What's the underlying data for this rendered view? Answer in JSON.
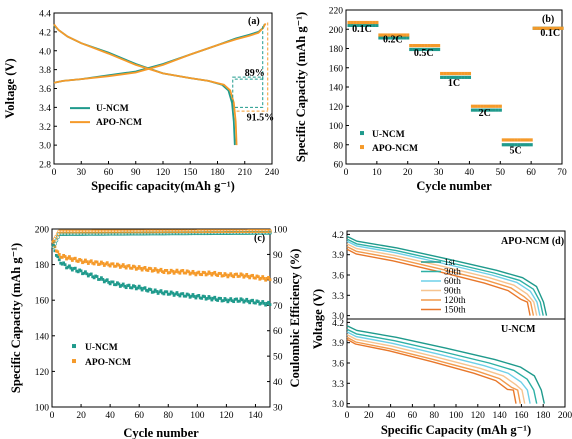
{
  "colors": {
    "u": "#1f9a8c",
    "apo": "#f59a2a",
    "cycle_palette": [
      "#1f9a8c",
      "#2db0a5",
      "#6fd0e8",
      "#f6c490",
      "#f29a4c",
      "#e8772a"
    ]
  },
  "chart_data": [
    {
      "id": "a",
      "type": "line",
      "panel_label": "(a)",
      "xlabel": "Specific capacity(mAh g⁻¹)",
      "ylabel": "Voltage (V)",
      "xlim": [
        0,
        240
      ],
      "ylim": [
        2.8,
        4.4
      ],
      "xticks": [
        "0",
        "30",
        "60",
        "90",
        "120",
        "150",
        "180",
        "210",
        "240"
      ],
      "yticks": [
        "2.8",
        "3.0",
        "3.2",
        "3.4",
        "3.6",
        "3.8",
        "4.0",
        "4.2",
        "4.4"
      ],
      "legend": [
        "U-NCM",
        "APO-NCM"
      ],
      "annotations": [
        "89%",
        "91.5%"
      ],
      "series": [
        {
          "name": "U-NCM",
          "color_key": "u",
          "charge": [
            [
              0,
              3.66
            ],
            [
              10,
              3.68
            ],
            [
              30,
              3.7
            ],
            [
              60,
              3.74
            ],
            [
              90,
              3.78
            ],
            [
              120,
              3.86
            ],
            [
              150,
              3.96
            ],
            [
              180,
              4.06
            ],
            [
              200,
              4.13
            ],
            [
              215,
              4.17
            ],
            [
              225,
              4.2
            ],
            [
              230,
              4.24
            ],
            [
              232,
              4.28
            ]
          ],
          "discharge": [
            [
              0,
              4.27
            ],
            [
              5,
              4.22
            ],
            [
              15,
              4.15
            ],
            [
              30,
              4.08
            ],
            [
              60,
              3.98
            ],
            [
              90,
              3.86
            ],
            [
              120,
              3.76
            ],
            [
              150,
              3.71
            ],
            [
              170,
              3.68
            ],
            [
              185,
              3.64
            ],
            [
              192,
              3.58
            ],
            [
              196,
              3.45
            ],
            [
              198,
              3.25
            ],
            [
              199,
              3.0
            ]
          ]
        },
        {
          "name": "APO-NCM",
          "color_key": "apo",
          "charge": [
            [
              0,
              3.66
            ],
            [
              10,
              3.68
            ],
            [
              30,
              3.7
            ],
            [
              60,
              3.73
            ],
            [
              90,
              3.77
            ],
            [
              120,
              3.85
            ],
            [
              150,
              3.96
            ],
            [
              180,
              4.06
            ],
            [
              200,
              4.12
            ],
            [
              215,
              4.16
            ],
            [
              225,
              4.19
            ],
            [
              230,
              4.24
            ],
            [
              233,
              4.29
            ]
          ],
          "discharge": [
            [
              0,
              4.28
            ],
            [
              5,
              4.22
            ],
            [
              15,
              4.15
            ],
            [
              30,
              4.08
            ],
            [
              60,
              3.97
            ],
            [
              90,
              3.85
            ],
            [
              120,
              3.76
            ],
            [
              150,
              3.71
            ],
            [
              170,
              3.68
            ],
            [
              187,
              3.64
            ],
            [
              194,
              3.58
            ],
            [
              198,
              3.45
            ],
            [
              200,
              3.25
            ],
            [
              201,
              3.0
            ]
          ]
        }
      ]
    },
    {
      "id": "b",
      "type": "scatter",
      "panel_label": "(b)",
      "xlabel": "Cycle number",
      "ylabel": "Specific Capacity (mAh g⁻¹)",
      "xlim": [
        0,
        70
      ],
      "ylim": [
        60,
        220
      ],
      "xticks": [
        "0",
        "10",
        "20",
        "30",
        "40",
        "50",
        "60",
        "70"
      ],
      "yticks": [
        "60",
        "80",
        "100",
        "120",
        "140",
        "160",
        "180",
        "200",
        "220"
      ],
      "legend": [
        "U-NCM",
        "APO-NCM"
      ],
      "rate_labels": [
        {
          "text": "0.1C",
          "x": 2,
          "y": 197
        },
        {
          "text": "0.2C",
          "x": 12,
          "y": 186
        },
        {
          "text": "0.5C",
          "x": 22,
          "y": 172
        },
        {
          "text": "1C",
          "x": 33,
          "y": 141
        },
        {
          "text": "2C",
          "x": 43,
          "y": 110
        },
        {
          "text": "5C",
          "x": 53,
          "y": 71
        },
        {
          "text": "0.1C",
          "x": 63,
          "y": 193
        }
      ],
      "series": [
        {
          "name": "U-NCM",
          "color_key": "u",
          "segments": [
            [
              1,
              10,
              204
            ],
            [
              11,
              20,
              191
            ],
            [
              21,
              30,
              179
            ],
            [
              31,
              40,
              150
            ],
            [
              41,
              50,
              116
            ],
            [
              51,
              60,
              80
            ],
            [
              61,
              70,
              201
            ]
          ]
        },
        {
          "name": "APO-NCM",
          "color_key": "apo",
          "segments": [
            [
              1,
              10,
              207
            ],
            [
              11,
              20,
              194
            ],
            [
              21,
              30,
              183
            ],
            [
              31,
              40,
              154
            ],
            [
              41,
              50,
              120
            ],
            [
              51,
              60,
              85
            ],
            [
              61,
              70,
              201
            ]
          ]
        }
      ]
    },
    {
      "id": "c",
      "type": "scatter",
      "panel_label": "(c)",
      "xlabel": "Cycle number",
      "ylabel": "Specific Capacity (mAh g⁻¹)",
      "y2label": "Coulombic Efficiency (%)",
      "xlim": [
        0,
        150
      ],
      "ylim": [
        100,
        200
      ],
      "y2lim": [
        30,
        100
      ],
      "xticks": [
        "0",
        "20",
        "40",
        "60",
        "80",
        "100",
        "120",
        "140"
      ],
      "yticks": [
        "100",
        "120",
        "140",
        "160",
        "180",
        "200"
      ],
      "y2ticks": [
        "30",
        "40",
        "50",
        "60",
        "70",
        "80",
        "90",
        "100"
      ],
      "legend": [
        "U-NCM",
        "APO-NCM"
      ],
      "series": [
        {
          "name": "U-NCM",
          "color_key": "u",
          "points": [
            [
              1,
              190
            ],
            [
              5,
              182
            ],
            [
              10,
              179
            ],
            [
              20,
              176
            ],
            [
              30,
              173
            ],
            [
              40,
              170
            ],
            [
              50,
              168
            ],
            [
              60,
              167
            ],
            [
              70,
              165
            ],
            [
              80,
              164
            ],
            [
              90,
              163
            ],
            [
              100,
              162
            ],
            [
              110,
              161
            ],
            [
              120,
              160
            ],
            [
              130,
              160
            ],
            [
              140,
              159
            ],
            [
              148,
              158
            ]
          ]
        },
        {
          "name": "APO-NCM",
          "color_key": "apo",
          "points": [
            [
              1,
              192
            ],
            [
              5,
              185
            ],
            [
              10,
              184
            ],
            [
              20,
              182
            ],
            [
              30,
              181
            ],
            [
              40,
              180
            ],
            [
              50,
              179
            ],
            [
              60,
              178
            ],
            [
              70,
              177
            ],
            [
              80,
              176
            ],
            [
              90,
              176
            ],
            [
              100,
              175
            ],
            [
              110,
              175
            ],
            [
              120,
              174
            ],
            [
              130,
              174
            ],
            [
              140,
              173
            ],
            [
              148,
              172
            ]
          ]
        },
        {
          "name": "CE U-NCM",
          "color_key": "u",
          "axis": "y2",
          "points": [
            [
              1,
              93
            ],
            [
              5,
              98
            ],
            [
              150,
              98.5
            ]
          ]
        },
        {
          "name": "CE APO-NCM",
          "color_key": "apo",
          "axis": "y2",
          "points": [
            [
              1,
              95
            ],
            [
              5,
              99
            ],
            [
              150,
              99.2
            ]
          ]
        }
      ]
    },
    {
      "id": "d",
      "type": "line",
      "panel_label": "(d)",
      "xlabel": "Specific Capacity (mAh g⁻¹)",
      "ylabel": "Voltage (V)",
      "xlim": [
        0,
        200
      ],
      "xticks": [
        "0",
        "20",
        "40",
        "60",
        "80",
        "100",
        "120",
        "140",
        "160",
        "180",
        "200"
      ],
      "legend": [
        "1st",
        "30th",
        "60th",
        "90th",
        "120th",
        "150th"
      ],
      "subplots": [
        {
          "label": "APO-NCM",
          "ylim": [
            2.95,
            4.25
          ],
          "yticks": [
            "3.0",
            "3.3",
            "3.6",
            "3.9",
            "4.2"
          ],
          "end_caps": [
            183,
            180,
            177,
            174,
            171,
            168
          ],
          "start_v": [
            4.17,
            4.13,
            4.1,
            4.06,
            4.02,
            3.98
          ]
        },
        {
          "label": "U-NCM",
          "ylim": [
            2.95,
            4.25
          ],
          "yticks": [
            "3.0",
            "3.3",
            "3.6",
            "3.9",
            "4.2"
          ],
          "end_caps": [
            181,
            174,
            168,
            163,
            159,
            155
          ],
          "start_v": [
            4.15,
            4.1,
            4.06,
            4.02,
            3.98,
            3.95
          ]
        }
      ]
    }
  ]
}
